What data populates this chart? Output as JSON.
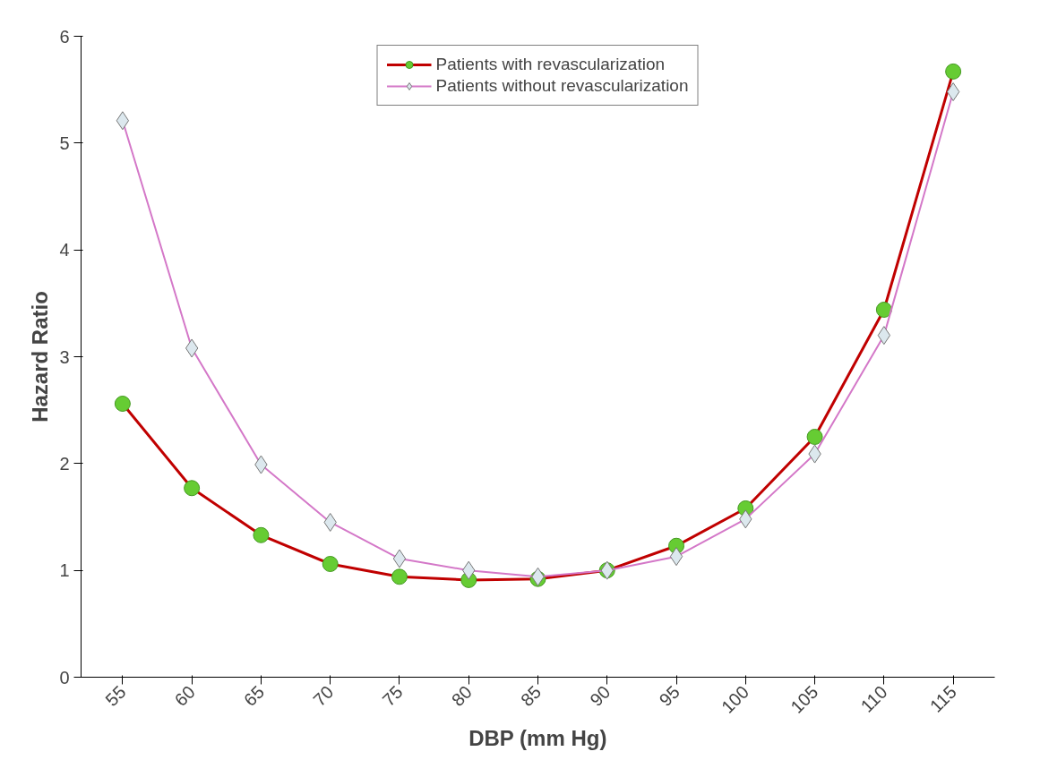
{
  "chart_data": {
    "type": "line",
    "xlabel": "DBP (mm Hg)",
    "ylabel": "Hazard Ratio",
    "categories": [
      "55",
      "60",
      "65",
      "70",
      "75",
      "80",
      "85",
      "90",
      "95",
      "100",
      "105",
      "110",
      "115"
    ],
    "ylim": [
      0,
      6
    ],
    "yticks": [
      0,
      1,
      2,
      3,
      4,
      5,
      6
    ],
    "grid": false,
    "legend": "top",
    "line_style": "solid",
    "series": [
      {
        "name": "Patients with revascularization",
        "color": "#c00000",
        "marker": "circle",
        "values": [
          2.56,
          1.77,
          1.33,
          1.06,
          0.94,
          0.91,
          0.92,
          1.0,
          1.23,
          1.58,
          2.25,
          3.44,
          5.67
        ]
      },
      {
        "name": "Patients without revascularization",
        "color": "#d478c8",
        "marker": "diamond",
        "values": [
          5.21,
          3.08,
          1.99,
          1.45,
          1.11,
          1.0,
          0.94,
          1.0,
          1.13,
          1.48,
          2.09,
          3.2,
          5.48
        ]
      }
    ]
  }
}
